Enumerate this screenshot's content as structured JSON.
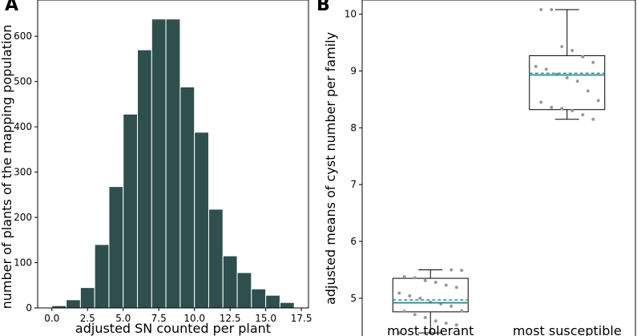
{
  "chart_data": [
    {
      "type": "bar",
      "panel_label": "A",
      "title": "",
      "xlabel": "adjusted SN counted per plant",
      "ylabel": "number of plants of the mapping population",
      "bar_color": "#2f4f4f",
      "bin_width": 1.0,
      "bin_centers": [
        0.5,
        1.5,
        2.5,
        3.5,
        4.5,
        5.5,
        6.5,
        7.5,
        8.5,
        9.5,
        10.5,
        11.5,
        12.5,
        13.5,
        14.5,
        15.5,
        16.5
      ],
      "values": [
        5,
        18,
        45,
        140,
        268,
        428,
        570,
        638,
        638,
        488,
        388,
        218,
        115,
        78,
        42,
        28,
        12
      ],
      "xlim": [
        -1,
        18
      ],
      "ylim": [
        0,
        680
      ],
      "xticks": [
        0.0,
        2.5,
        5.0,
        7.5,
        10.0,
        12.5,
        15.0,
        17.5
      ],
      "xtick_labels": [
        "0.0",
        "2.5",
        "5.0",
        "7.5",
        "10.0",
        "12.5",
        "15.0",
        "17.5"
      ],
      "yticks": [
        0,
        100,
        200,
        300,
        400,
        500,
        600
      ],
      "ytick_labels": [
        "0",
        "100",
        "200",
        "300",
        "400",
        "500",
        "600"
      ]
    },
    {
      "type": "box",
      "panel_label": "B",
      "title": "",
      "xlabel": "",
      "ylabel": "adjusted means of cyst number per family",
      "ylim": [
        4.25,
        10.25
      ],
      "yticks": [
        5,
        6,
        7,
        8,
        9,
        10
      ],
      "ytick_labels": [
        "5",
        "6",
        "7",
        "8",
        "9",
        "10"
      ],
      "median_color": "#2e8b8b",
      "mean_color": "#2e8b8b",
      "point_color": "#9a9a9a",
      "categories": [
        "most tolerant",
        "most susceptible"
      ],
      "boxes": [
        {
          "category": "most tolerant",
          "whisker_low": 4.39,
          "q1": 4.76,
          "median": 4.92,
          "mean": 4.97,
          "q3": 5.35,
          "whisker_high": 5.5,
          "points": [
            4.39,
            4.53,
            4.56,
            4.6,
            4.66,
            4.71,
            4.77,
            4.78,
            4.86,
            4.9,
            4.93,
            5.0,
            5.04,
            5.09,
            5.19,
            5.23,
            5.28,
            5.31,
            5.36,
            5.38,
            5.49,
            5.5
          ]
        },
        {
          "category": "most susceptible",
          "whisker_low": 8.15,
          "q1": 8.32,
          "median": 8.93,
          "mean": 8.96,
          "q3": 9.27,
          "whisker_high": 10.08,
          "points": [
            8.15,
            8.23,
            8.3,
            8.34,
            8.36,
            8.45,
            8.48,
            8.65,
            8.82,
            8.88,
            8.94,
            9.03,
            9.08,
            9.15,
            9.25,
            9.36,
            9.43,
            10.08,
            10.08
          ]
        }
      ]
    }
  ]
}
